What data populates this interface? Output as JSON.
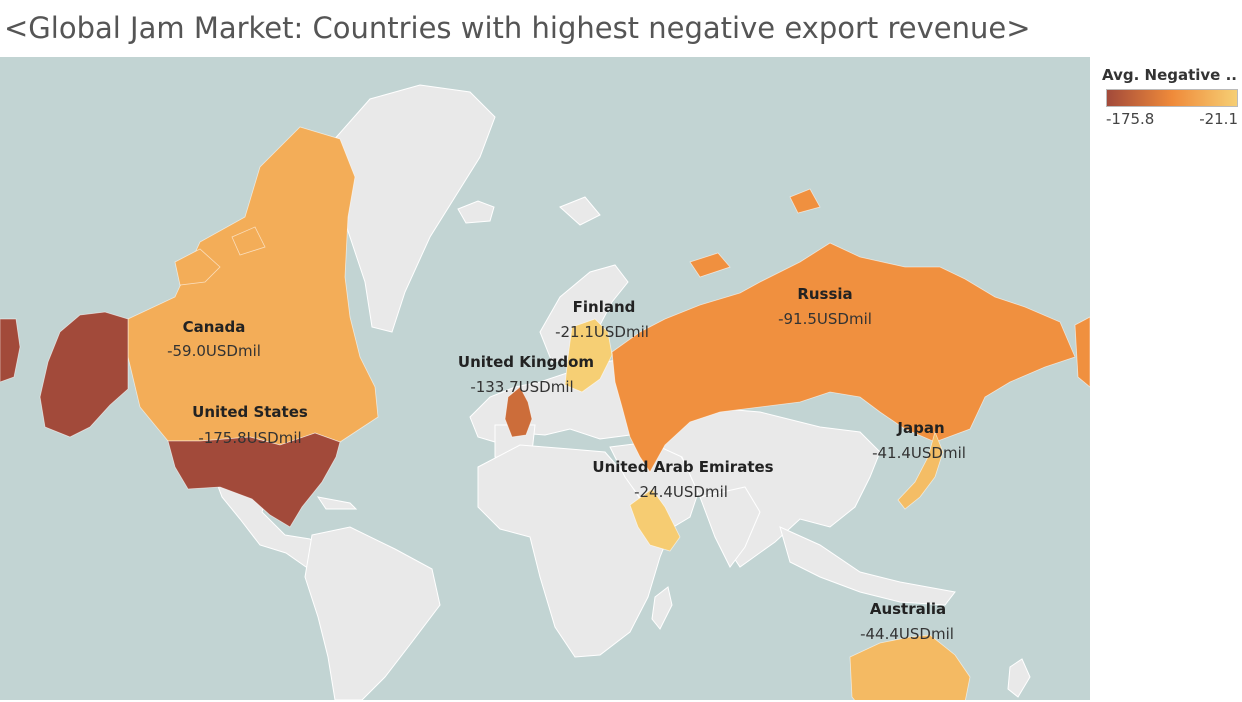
{
  "title": "<Global Jam Market: Countries with highest negative export revenue>",
  "legend": {
    "title": "Avg. Negative ..",
    "min_label": "-175.8",
    "max_label": "-21.1",
    "min": -175.8,
    "max": -21.1,
    "color_low": "#a24a3a",
    "color_mid": "#ef8a3a",
    "color_high": "#f6cf74"
  },
  "countries": [
    {
      "name": "Canada",
      "value_label": "-59.0USDmil",
      "value": -59.0
    },
    {
      "name": "United States",
      "value_label": "-175.8USDmil",
      "value": -175.8
    },
    {
      "name": "United Kingdom",
      "value_label": "-133.7USDmil",
      "value": -133.7
    },
    {
      "name": "Finland",
      "value_label": "-21.1USDmil",
      "value": -21.1
    },
    {
      "name": "Russia",
      "value_label": "-91.5USDmil",
      "value": -91.5
    },
    {
      "name": "Japan",
      "value_label": "-41.4USDmil",
      "value": -41.4
    },
    {
      "name": "United Arab Emirates",
      "value_label": "-24.4USDmil",
      "value": -24.4
    },
    {
      "name": "Australia",
      "value_label": "-44.4USDmil",
      "value": -44.4
    }
  ],
  "colors": {
    "ocean": "#c2d4d3",
    "land": "#e9e9e9"
  }
}
